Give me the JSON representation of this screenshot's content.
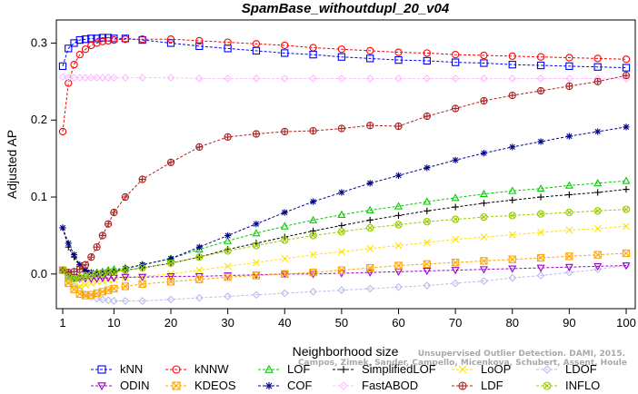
{
  "chart_data": {
    "type": "line",
    "title": "SpamBase_withoutdupl_20_v04",
    "xlabel": "Neighborhood size",
    "ylabel": "Adjusted AP",
    "xlim": [
      1,
      100
    ],
    "ylim": [
      -0.045,
      0.33
    ],
    "x_ticks": [
      1,
      10,
      20,
      30,
      40,
      50,
      60,
      70,
      80,
      90,
      100
    ],
    "y_ticks": [
      0.0,
      0.1,
      0.2,
      0.3
    ],
    "y_tick_labels": [
      "0.0",
      "0.1",
      "0.2",
      "0.3"
    ],
    "grid": false,
    "legend_position": "bottom",
    "x": [
      1,
      2,
      3,
      4,
      5,
      6,
      7,
      8,
      9,
      10,
      12,
      15,
      20,
      25,
      30,
      35,
      40,
      45,
      50,
      55,
      60,
      65,
      70,
      75,
      80,
      85,
      90,
      95,
      100
    ],
    "series": [
      {
        "name": "kNN",
        "color": "#0000ff",
        "marker": "square",
        "values": [
          0.27,
          0.293,
          0.3,
          0.304,
          0.305,
          0.306,
          0.306,
          0.307,
          0.307,
          0.306,
          0.306,
          0.304,
          0.3,
          0.296,
          0.293,
          0.29,
          0.287,
          0.285,
          0.282,
          0.28,
          0.278,
          0.277,
          0.275,
          0.274,
          0.272,
          0.271,
          0.27,
          0.269,
          0.268
        ]
      },
      {
        "name": "kNNW",
        "color": "#ff0000",
        "marker": "circle",
        "values": [
          0.185,
          0.248,
          0.272,
          0.285,
          0.292,
          0.297,
          0.3,
          0.302,
          0.303,
          0.304,
          0.305,
          0.305,
          0.305,
          0.303,
          0.301,
          0.299,
          0.297,
          0.294,
          0.292,
          0.29,
          0.288,
          0.287,
          0.285,
          0.284,
          0.283,
          0.282,
          0.281,
          0.28,
          0.279
        ]
      },
      {
        "name": "LOF",
        "color": "#00cc00",
        "marker": "triangle",
        "values": [
          0.005,
          -0.002,
          -0.006,
          -0.004,
          -0.002,
          0.0,
          0.002,
          0.003,
          0.005,
          0.006,
          0.008,
          0.012,
          0.02,
          0.032,
          0.043,
          0.053,
          0.062,
          0.07,
          0.077,
          0.083,
          0.088,
          0.094,
          0.099,
          0.104,
          0.108,
          0.111,
          0.115,
          0.118,
          0.121
        ]
      },
      {
        "name": "SimplifiedLOF",
        "color": "#000000",
        "marker": "plus",
        "values": [
          0.06,
          0.035,
          0.022,
          0.01,
          0.004,
          0.001,
          0.0,
          0.001,
          0.002,
          0.003,
          0.005,
          0.008,
          0.014,
          0.022,
          0.032,
          0.04,
          0.048,
          0.056,
          0.063,
          0.07,
          0.076,
          0.082,
          0.087,
          0.092,
          0.096,
          0.1,
          0.103,
          0.106,
          0.11
        ]
      },
      {
        "name": "LoOP",
        "color": "#ffe000",
        "marker": "x",
        "values": [
          0.005,
          -0.01,
          -0.016,
          -0.016,
          -0.014,
          -0.012,
          -0.01,
          -0.009,
          -0.008,
          -0.007,
          -0.005,
          -0.003,
          0.0,
          0.005,
          0.01,
          0.015,
          0.02,
          0.025,
          0.029,
          0.033,
          0.037,
          0.041,
          0.045,
          0.048,
          0.051,
          0.054,
          0.057,
          0.059,
          0.062
        ]
      },
      {
        "name": "LDOF",
        "color": "#bbbbee",
        "marker": "diamond",
        "values": [
          0.005,
          -0.008,
          -0.016,
          -0.022,
          -0.026,
          -0.03,
          -0.032,
          -0.033,
          -0.034,
          -0.035,
          -0.035,
          -0.035,
          -0.033,
          -0.031,
          -0.029,
          -0.027,
          -0.025,
          -0.023,
          -0.021,
          -0.019,
          -0.017,
          -0.015,
          -0.012,
          -0.009,
          -0.005,
          -0.002,
          0.002,
          0.006,
          0.011
        ]
      },
      {
        "name": "ODIN",
        "color": "#9900cc",
        "marker": "triangle-down",
        "values": [
          0.005,
          0.0,
          -0.004,
          -0.006,
          -0.006,
          -0.006,
          -0.006,
          -0.005,
          -0.005,
          -0.005,
          -0.004,
          -0.004,
          -0.003,
          -0.003,
          -0.002,
          -0.001,
          0.0,
          0.0,
          0.001,
          0.002,
          0.003,
          0.004,
          0.005,
          0.006,
          0.007,
          0.008,
          0.009,
          0.01,
          0.011
        ]
      },
      {
        "name": "KDEOS",
        "color": "#ffa500",
        "marker": "square-x",
        "values": [
          0.005,
          -0.012,
          -0.02,
          -0.026,
          -0.028,
          -0.027,
          -0.025,
          -0.023,
          -0.021,
          -0.019,
          -0.016,
          -0.013,
          -0.01,
          -0.007,
          -0.004,
          -0.002,
          0.0,
          0.002,
          0.005,
          0.008,
          0.011,
          0.013,
          0.015,
          0.017,
          0.019,
          0.021,
          0.023,
          0.025,
          0.027
        ]
      },
      {
        "name": "COF",
        "color": "#000088",
        "marker": "asterisk",
        "values": [
          0.06,
          0.04,
          0.025,
          0.012,
          0.005,
          0.002,
          0.001,
          0.002,
          0.003,
          0.004,
          0.007,
          0.012,
          0.02,
          0.035,
          0.05,
          0.065,
          0.08,
          0.094,
          0.106,
          0.118,
          0.128,
          0.138,
          0.148,
          0.157,
          0.165,
          0.172,
          0.179,
          0.185,
          0.191
        ]
      },
      {
        "name": "FastABOD",
        "color": "#ffbbff",
        "marker": "diamond",
        "values": [
          0.256,
          0.255,
          0.255,
          0.255,
          0.255,
          0.255,
          0.255,
          0.255,
          0.255,
          0.255,
          0.255,
          0.255,
          0.255,
          0.254,
          0.254,
          0.254,
          0.254,
          0.254,
          0.254,
          0.254,
          0.254,
          0.254,
          0.254,
          0.254,
          0.254,
          0.254,
          0.254,
          0.254,
          0.254
        ]
      },
      {
        "name": "LDF",
        "color": "#aa2222",
        "marker": "circle-plus",
        "values": [
          0.005,
          0.002,
          0.003,
          0.006,
          0.012,
          0.022,
          0.035,
          0.05,
          0.065,
          0.08,
          0.1,
          0.123,
          0.145,
          0.165,
          0.178,
          0.182,
          0.185,
          0.186,
          0.189,
          0.193,
          0.192,
          0.205,
          0.215,
          0.225,
          0.232,
          0.238,
          0.244,
          0.25,
          0.258
        ]
      },
      {
        "name": "INFLO",
        "color": "#99cc00",
        "marker": "circle-x",
        "values": [
          0.005,
          -0.003,
          -0.006,
          -0.005,
          -0.003,
          -0.001,
          0.0,
          0.001,
          0.002,
          0.003,
          0.005,
          0.008,
          0.014,
          0.022,
          0.03,
          0.037,
          0.044,
          0.05,
          0.055,
          0.06,
          0.064,
          0.068,
          0.071,
          0.074,
          0.076,
          0.078,
          0.08,
          0.082,
          0.084
        ]
      }
    ],
    "legend_rows": [
      [
        "kNN",
        "kNNW",
        "LOF",
        "SimplifiedLOF",
        "LoOP",
        "LDOF"
      ],
      [
        "ODIN",
        "KDEOS",
        "COF",
        "FastABOD",
        "LDF",
        "INFLO"
      ]
    ]
  },
  "watermark": {
    "line1": "Unsupervised Outlier Detection. DAMI, 2015.",
    "line2": "Campos, Zimek, Sander, Campello, Micenkova, Schubert, Assent, Houle"
  }
}
